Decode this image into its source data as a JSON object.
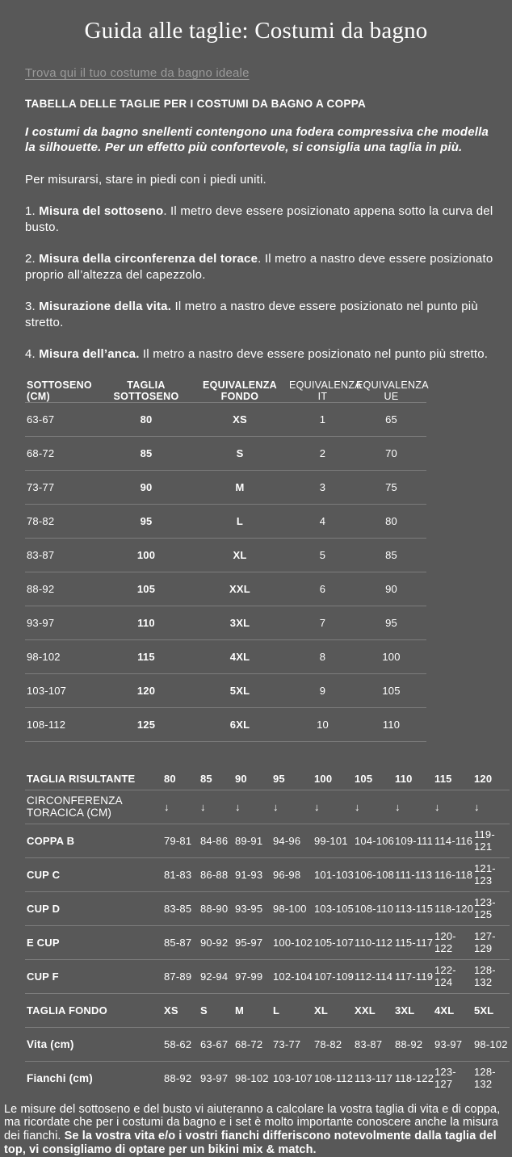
{
  "colors": {
    "background": "#585858",
    "text_primary": "#ffffff",
    "link": "#9a9a9a",
    "divider": "#7c7c7c"
  },
  "page": {
    "title": "Guida alle taglie: Costumi da bagno"
  },
  "link": {
    "label": "Trova qui il tuo costume da bagno ideale"
  },
  "content": {
    "section_heading": "TABELLA DELLE TAGLIE PER I COSTUMI DA BAGNO A COPPA",
    "intro_bold_italic": "I costumi da bagno snellenti contengono una fodera compressiva che modella la silhouette. Per un effetto più confortevole, si consiglia una taglia in più.",
    "stand_instruction": "Per misurarsi, stare in piedi con i piedi uniti.",
    "steps": [
      {
        "prefix": "1. ",
        "bold": "Misura del sottoseno",
        "rest": ". Il metro deve essere posizionato appena sotto la curva del busto."
      },
      {
        "prefix": "2. ",
        "bold": "Misura della circonferenza del torace",
        "rest": ". Il metro a nastro deve essere posizionato proprio all’altezza del capezzolo."
      },
      {
        "prefix": "3. ",
        "bold": "Misurazione della vita.",
        "rest": " Il metro a nastro deve essere posizionato nel punto più stretto."
      },
      {
        "prefix": "4. ",
        "bold": "Misura dell’anca.",
        "rest": " Il metro a nastro deve essere posizionato nel punto più stretto."
      }
    ]
  },
  "table1": {
    "headers": [
      "SOTTOSENO (CM)",
      "TAGLIA SOTTOSENO",
      "EQUIVALENZA FONDO",
      "EQUIVALENZA IT",
      "EQUIVALENZA UE"
    ],
    "rows": [
      [
        "63-67",
        "80",
        "XS",
        "1",
        "65"
      ],
      [
        "68-72",
        "85",
        "S",
        "2",
        "70"
      ],
      [
        "73-77",
        "90",
        "M",
        "3",
        "75"
      ],
      [
        "78-82",
        "95",
        "L",
        "4",
        "80"
      ],
      [
        "83-87",
        "100",
        "XL",
        "5",
        "85"
      ],
      [
        "88-92",
        "105",
        "XXL",
        "6",
        "90"
      ],
      [
        "93-97",
        "110",
        "3XL",
        "7",
        "95"
      ],
      [
        "98-102",
        "115",
        "4XL",
        "8",
        "100"
      ],
      [
        "103-107",
        "120",
        "5XL",
        "9",
        "105"
      ],
      [
        "108-112",
        "125",
        "6XL",
        "10",
        "110"
      ]
    ]
  },
  "table2": {
    "header_label": "TAGLIA RISULTANTE",
    "header_values": [
      "80",
      "85",
      "90",
      "95",
      "100",
      "105",
      "110",
      "115",
      "120"
    ],
    "arrow_icon": "↓",
    "rows": [
      {
        "label": "CIRCONFERENZA TORACICA (CM)",
        "values": [
          "↓",
          "↓",
          "↓",
          "↓",
          "↓",
          "↓",
          "↓",
          "↓",
          "↓"
        ]
      },
      {
        "label": "COPPA B",
        "values": [
          "79-81",
          "84-86",
          "89-91",
          "94-96",
          "99-101",
          "104-106",
          "109-111",
          "114-116",
          "119-121"
        ]
      },
      {
        "label": "CUP C",
        "values": [
          "81-83",
          "86-88",
          "91-93",
          "96-98",
          "101-103",
          "106-108",
          "111-113",
          "116-118",
          "121-123"
        ]
      },
      {
        "label": "CUP D",
        "values": [
          "83-85",
          "88-90",
          "93-95",
          "98-100",
          "103-105",
          "108-110",
          "113-115",
          "118-120",
          "123-125"
        ]
      },
      {
        "label": "E CUP",
        "values": [
          "85-87",
          "90-92",
          "95-97",
          "100-102",
          "105-107",
          "110-112",
          "115-117",
          "120-122",
          "127-129"
        ]
      },
      {
        "label": "CUP F",
        "values": [
          "87-89",
          "92-94",
          "97-99",
          "102-104",
          "107-109",
          "112-114",
          "117-119",
          "122-124",
          "128-132"
        ]
      },
      {
        "label": "TAGLIA FONDO",
        "values": [
          "XS",
          "S",
          "M",
          "L",
          "XL",
          "XXL",
          "3XL",
          "4XL",
          "5XL"
        ]
      },
      {
        "label": "Vita (cm)",
        "values": [
          "58-62",
          "63-67",
          "68-72",
          "73-77",
          "78-82",
          "83-87",
          "88-92",
          "93-97",
          "98-102"
        ]
      },
      {
        "label": "Fianchi (cm)",
        "values": [
          "88-92",
          "93-97",
          "98-102",
          "103-107",
          "108-112",
          "113-117",
          "118-122",
          "123-127",
          "128-132"
        ]
      }
    ]
  },
  "footer": {
    "normal": "Le misure del sottoseno e del busto vi aiuteranno a calcolare la vostra taglia di vita e di coppa, ma ricordate che per i costumi da bagno e i set è molto importante conoscere anche la misura dei fianchi. ",
    "bold": "Se la vostra vita e/o i vostri fianchi differiscono notevolmente dalla taglia del top, vi consigliamo di optare per un bikini mix & match."
  }
}
